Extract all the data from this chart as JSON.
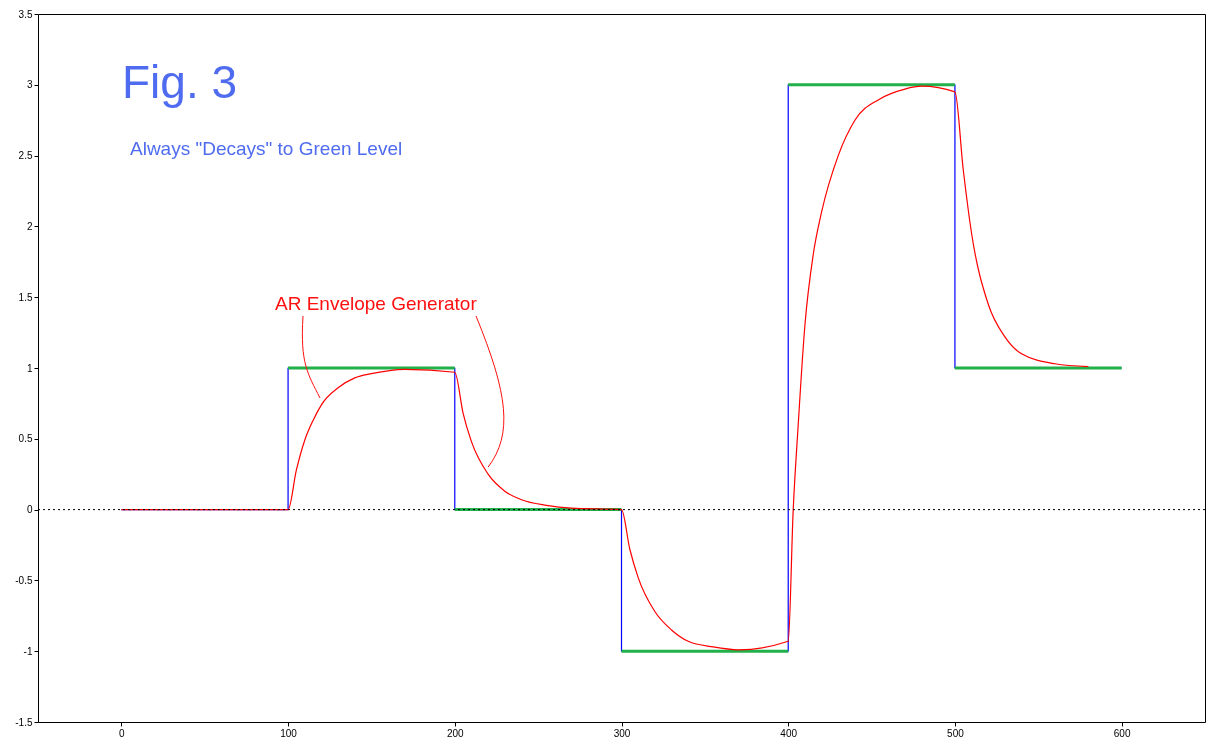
{
  "chart_data": {
    "type": "line",
    "title": "Fig. 3",
    "annotations": [
      "Always \"Decays\" to Green Level",
      {
        "text": "AR Envelope Generator",
        "x": 220,
        "y": 0.3
      }
    ],
    "xlim": [
      -50,
      650
    ],
    "xticks": [
      0,
      100,
      200,
      300,
      400,
      500,
      600
    ],
    "ylim": [
      -1.5,
      3.5
    ],
    "yticks": [
      -1.5,
      -1,
      -0.5,
      0,
      0.5,
      1,
      1.5,
      2,
      2.5,
      3,
      3.5
    ],
    "grid": false,
    "marker": "none",
    "ref_lines": [
      {
        "axis": "y",
        "value": 0,
        "color": "#000000",
        "line_style": "dotted"
      }
    ],
    "series": [
      {
        "type": "step",
        "color": "#0000ff",
        "x": [
          0,
          100,
          200,
          300,
          400,
          500,
          600
        ],
        "values": [
          0,
          1,
          0,
          -1,
          3,
          1,
          1
        ]
      },
      {
        "color": "#22b04a",
        "x": [
          100,
          200
        ],
        "values": [
          1,
          1
        ]
      },
      {
        "color": "#22b04a",
        "x": [
          200,
          300
        ],
        "values": [
          0,
          0
        ]
      },
      {
        "color": "#22b04a",
        "x": [
          300,
          400
        ],
        "values": [
          -1,
          -1
        ]
      },
      {
        "color": "#22b04a",
        "x": [
          400,
          500
        ],
        "values": [
          3,
          3
        ]
      },
      {
        "color": "#22b04a",
        "x": [
          500,
          600
        ],
        "values": [
          1,
          1
        ]
      },
      {
        "color": "#ff0000",
        "x": [
          0,
          100,
          105,
          110,
          115,
          120,
          130,
          140,
          150,
          160,
          170,
          200,
          205,
          210,
          220,
          230,
          240,
          255,
          270,
          300,
          305,
          310,
          320,
          330,
          340,
          355,
          370,
          400,
          403,
          406,
          410,
          415,
          420,
          430,
          440,
          455,
          470,
          480,
          500,
          505,
          510,
          520,
          530,
          540,
          560,
          580
        ],
        "values": [
          0,
          0,
          0.28,
          0.49,
          0.63,
          0.74,
          0.86,
          0.93,
          0.96,
          0.98,
          0.99,
          0.97,
          0.68,
          0.48,
          0.25,
          0.13,
          0.07,
          0.03,
          0.01,
          0,
          -0.28,
          -0.48,
          -0.72,
          -0.85,
          -0.93,
          -0.97,
          -0.99,
          -0.93,
          0,
          0.6,
          1.3,
          1.8,
          2.1,
          2.5,
          2.75,
          2.9,
          2.97,
          2.99,
          2.95,
          2.4,
          1.95,
          1.45,
          1.22,
          1.1,
          1.03,
          1.01
        ]
      }
    ]
  }
}
